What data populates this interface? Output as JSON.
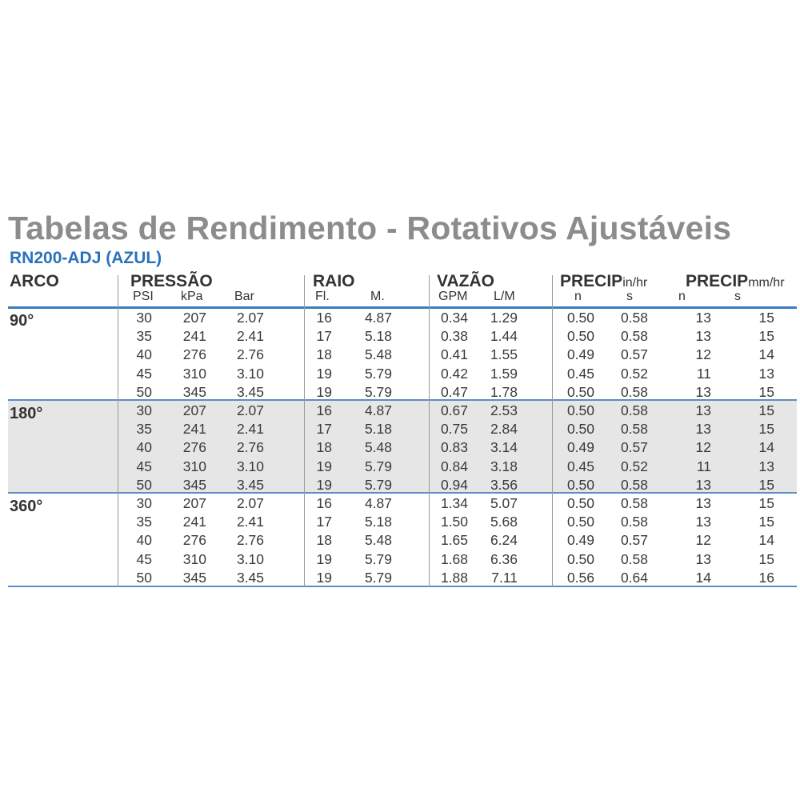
{
  "title": "Tabelas de Rendimento - Rotativos Ajustáveis",
  "subtitle": "RN200-ADJ (AZUL)",
  "colors": {
    "title": "#8c8c8c",
    "subtitle": "#2b72b9",
    "rule": "#3d7dbf",
    "band": "#e6e6e6"
  },
  "headers": {
    "arco": "ARCO",
    "pressao": "PRESSÃO",
    "raio": "RAIO",
    "vazao": "VAZÃO",
    "precip_in": "PRECIP",
    "precip_in_unit": "in/hr",
    "precip_mm": "PRECIP",
    "precip_mm_unit": "mm/hr"
  },
  "subheaders": {
    "psi": "PSI",
    "kpa": "kPa",
    "bar": "Bar",
    "ft": "Fl.",
    "m": "M.",
    "gpm": "GPM",
    "lm": "L/M",
    "in_n": "n",
    "in_s": "s",
    "mm_n": "n",
    "mm_s": "s"
  },
  "groups": [
    {
      "arc": "90°",
      "rows": [
        [
          "30",
          "207",
          "2.07",
          "16",
          "4.87",
          "0.34",
          "1.29",
          "0.50",
          "0.58",
          "13",
          "15"
        ],
        [
          "35",
          "241",
          "2.41",
          "17",
          "5.18",
          "0.38",
          "1.44",
          "0.50",
          "0.58",
          "13",
          "15"
        ],
        [
          "40",
          "276",
          "2.76",
          "18",
          "5.48",
          "0.41",
          "1.55",
          "0.49",
          "0.57",
          "12",
          "14"
        ],
        [
          "45",
          "310",
          "3.10",
          "19",
          "5.79",
          "0.42",
          "1.59",
          "0.45",
          "0.52",
          "11",
          "13"
        ],
        [
          "50",
          "345",
          "3.45",
          "19",
          "5.79",
          "0.47",
          "1.78",
          "0.50",
          "0.58",
          "13",
          "15"
        ]
      ]
    },
    {
      "arc": "180°",
      "rows": [
        [
          "30",
          "207",
          "2.07",
          "16",
          "4.87",
          "0.67",
          "2.53",
          "0.50",
          "0.58",
          "13",
          "15"
        ],
        [
          "35",
          "241",
          "2.41",
          "17",
          "5.18",
          "0.75",
          "2.84",
          "0.50",
          "0.58",
          "13",
          "15"
        ],
        [
          "40",
          "276",
          "2.76",
          "18",
          "5.48",
          "0.83",
          "3.14",
          "0.49",
          "0.57",
          "12",
          "14"
        ],
        [
          "45",
          "310",
          "3.10",
          "19",
          "5.79",
          "0.84",
          "3.18",
          "0.45",
          "0.52",
          "11",
          "13"
        ],
        [
          "50",
          "345",
          "3.45",
          "19",
          "5.79",
          "0.94",
          "3.56",
          "0.50",
          "0.58",
          "13",
          "15"
        ]
      ]
    },
    {
      "arc": "360°",
      "rows": [
        [
          "30",
          "207",
          "2.07",
          "16",
          "4.87",
          "1.34",
          "5.07",
          "0.50",
          "0.58",
          "13",
          "15"
        ],
        [
          "35",
          "241",
          "2.41",
          "17",
          "5.18",
          "1.50",
          "5.68",
          "0.50",
          "0.58",
          "13",
          "15"
        ],
        [
          "40",
          "276",
          "2.76",
          "18",
          "5.48",
          "1.65",
          "6.24",
          "0.49",
          "0.57",
          "12",
          "14"
        ],
        [
          "45",
          "310",
          "3.10",
          "19",
          "5.79",
          "1.68",
          "6.36",
          "0.50",
          "0.58",
          "13",
          "15"
        ],
        [
          "50",
          "345",
          "3.45",
          "19",
          "5.79",
          "1.88",
          "7.11",
          "0.56",
          "0.64",
          "14",
          "16"
        ]
      ]
    }
  ]
}
